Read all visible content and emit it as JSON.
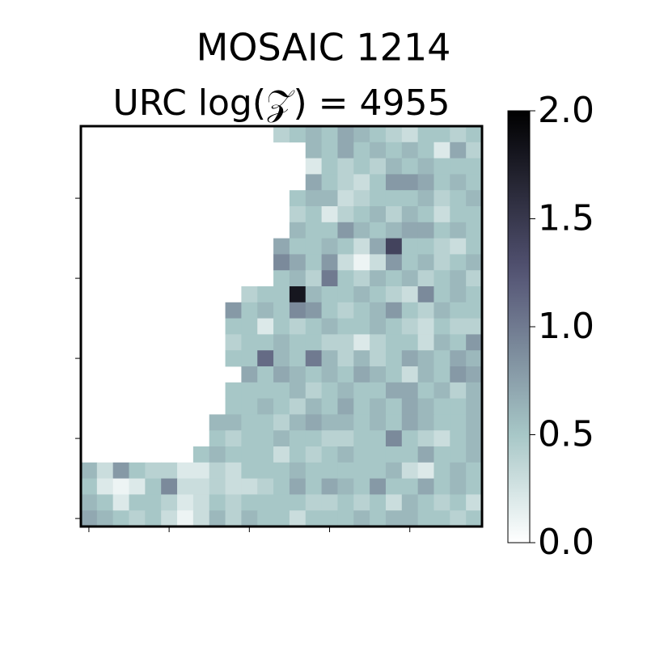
{
  "chart_data": {
    "type": "heatmap",
    "title": "MOSAIC 1214",
    "subtitle": "URC log(𝒵) = 4955",
    "colormap": "bone_r",
    "xlim": [
      -0.5,
      24.5
    ],
    "ylim": [
      24.5,
      -0.5
    ],
    "xticks": [
      0,
      5,
      10,
      15,
      20
    ],
    "yticks": [
      4,
      9,
      14,
      19,
      24
    ],
    "colorbar": {
      "lim": [
        0,
        2
      ],
      "ticks": [
        {
          "value": 0,
          "label": "0.0"
        },
        0.5,
        {
          "value": 1,
          "label": "1.0"
        },
        1.5,
        {
          "value": 2,
          "label": "2.0"
        }
      ]
    },
    "values": [
      [
        null,
        null,
        null,
        null,
        null,
        null,
        null,
        null,
        null,
        null,
        null,
        null,
        0.4,
        0.5,
        0.6,
        0.5,
        0.7,
        0.6,
        0.5,
        0.4,
        0.3,
        0.5,
        0.5,
        0.4,
        0.5
      ],
      [
        null,
        null,
        null,
        null,
        null,
        null,
        null,
        null,
        null,
        null,
        null,
        null,
        null,
        null,
        0.6,
        0.5,
        0.7,
        0.5,
        0.6,
        0.5,
        0.6,
        0.5,
        0.2,
        0.7,
        0.4
      ],
      [
        null,
        null,
        null,
        null,
        null,
        null,
        null,
        null,
        null,
        null,
        null,
        null,
        null,
        null,
        0.2,
        0.5,
        0.4,
        0.5,
        0.4,
        0.6,
        0.5,
        0.6,
        0.5,
        0.5,
        0.5
      ],
      [
        null,
        null,
        null,
        null,
        null,
        null,
        null,
        null,
        null,
        null,
        null,
        null,
        null,
        null,
        0.7,
        0.5,
        0.4,
        0.3,
        0.5,
        0.8,
        0.8,
        0.7,
        0.5,
        0.6,
        0.5
      ],
      [
        null,
        null,
        null,
        null,
        null,
        null,
        null,
        null,
        null,
        null,
        null,
        null,
        null,
        0.5,
        0.6,
        0.6,
        0.3,
        0.4,
        0.5,
        0.5,
        0.5,
        0.6,
        0.4,
        0.5,
        0.6
      ],
      [
        null,
        null,
        null,
        null,
        null,
        null,
        null,
        null,
        null,
        null,
        null,
        null,
        null,
        0.4,
        0.5,
        0.2,
        0.4,
        0.5,
        0.6,
        0.4,
        0.6,
        0.5,
        0.3,
        0.5,
        0.5
      ],
      [
        null,
        null,
        null,
        null,
        null,
        null,
        null,
        null,
        null,
        null,
        null,
        null,
        null,
        0.6,
        0.5,
        0.5,
        0.8,
        0.6,
        0.5,
        0.6,
        0.7,
        0.7,
        0.5,
        0.6,
        0.5
      ],
      [
        null,
        null,
        null,
        null,
        null,
        null,
        null,
        null,
        null,
        null,
        null,
        null,
        0.7,
        0.5,
        0.5,
        0.6,
        0.5,
        0.3,
        0.7,
        1.4,
        0.5,
        0.5,
        0.4,
        0.3,
        0.5
      ],
      [
        null,
        null,
        null,
        null,
        null,
        null,
        null,
        null,
        null,
        null,
        null,
        null,
        0.9,
        0.7,
        0.5,
        0.8,
        0.3,
        0.1,
        0.3,
        0.8,
        0.5,
        0.6,
        0.4,
        0.5,
        0.6
      ],
      [
        null,
        null,
        null,
        null,
        null,
        null,
        null,
        null,
        null,
        null,
        null,
        null,
        0.5,
        0.6,
        0.4,
        1.0,
        0.5,
        0.4,
        0.6,
        0.5,
        0.6,
        0.4,
        0.5,
        0.6,
        0.4
      ],
      [
        null,
        null,
        null,
        null,
        null,
        null,
        null,
        null,
        null,
        null,
        0.4,
        0.5,
        0.5,
        1.8,
        0.6,
        0.5,
        0.5,
        0.6,
        0.5,
        0.4,
        0.3,
        0.9,
        0.5,
        0.6,
        0.5
      ],
      [
        null,
        null,
        null,
        null,
        null,
        null,
        null,
        null,
        null,
        0.8,
        0.5,
        0.6,
        0.5,
        0.9,
        0.8,
        0.5,
        0.4,
        0.5,
        0.6,
        0.8,
        0.5,
        0.4,
        0.6,
        0.5,
        0.5
      ],
      [
        null,
        null,
        null,
        null,
        null,
        null,
        null,
        null,
        null,
        0.5,
        0.5,
        0.2,
        0.5,
        0.4,
        0.5,
        0.6,
        0.5,
        0.5,
        0.6,
        0.5,
        0.4,
        0.3,
        0.5,
        0.4,
        0.4
      ],
      [
        null,
        null,
        null,
        null,
        null,
        null,
        null,
        null,
        null,
        0.4,
        0.5,
        0.5,
        0.6,
        0.5,
        0.5,
        0.4,
        0.4,
        0.2,
        0.4,
        0.5,
        0.5,
        0.3,
        0.6,
        0.5,
        0.8
      ],
      [
        null,
        null,
        null,
        null,
        null,
        null,
        null,
        null,
        null,
        0.5,
        0.5,
        1.1,
        0.6,
        0.5,
        1.0,
        0.6,
        0.4,
        0.6,
        0.4,
        0.5,
        0.7,
        0.6,
        0.5,
        0.7,
        0.6
      ],
      [
        null,
        null,
        null,
        null,
        null,
        null,
        null,
        null,
        null,
        null,
        0.7,
        0.5,
        0.7,
        0.6,
        0.5,
        0.6,
        0.5,
        0.7,
        0.6,
        0.5,
        0.3,
        0.6,
        0.5,
        0.8,
        0.7
      ],
      [
        null,
        null,
        null,
        null,
        null,
        null,
        null,
        null,
        null,
        0.5,
        0.5,
        0.5,
        0.5,
        0.6,
        0.4,
        0.5,
        0.6,
        0.5,
        0.5,
        0.7,
        0.7,
        0.5,
        0.6,
        0.4,
        0.6
      ],
      [
        null,
        null,
        null,
        null,
        null,
        null,
        null,
        null,
        null,
        0.5,
        0.5,
        0.6,
        0.5,
        0.4,
        0.6,
        0.5,
        0.7,
        0.5,
        0.6,
        0.5,
        0.7,
        0.6,
        0.5,
        0.5,
        0.6
      ],
      [
        null,
        null,
        null,
        null,
        null,
        null,
        null,
        null,
        0.6,
        0.6,
        0.5,
        0.5,
        0.4,
        0.6,
        0.7,
        0.6,
        0.6,
        0.5,
        0.6,
        0.5,
        0.7,
        0.6,
        0.5,
        0.5,
        0.6
      ],
      [
        null,
        null,
        null,
        null,
        null,
        null,
        null,
        null,
        0.5,
        0.4,
        0.5,
        0.5,
        0.6,
        0.5,
        0.5,
        0.4,
        0.4,
        0.5,
        0.5,
        0.9,
        0.5,
        0.4,
        0.3,
        0.5,
        0.6
      ],
      [
        null,
        null,
        null,
        null,
        null,
        null,
        null,
        0.5,
        0.6,
        0.5,
        0.5,
        0.5,
        0.3,
        0.5,
        0.4,
        0.5,
        0.6,
        0.5,
        0.5,
        0.5,
        0.5,
        0.7,
        0.5,
        0.5,
        0.6
      ],
      [
        0.6,
        0.3,
        0.8,
        0.5,
        0.4,
        0.4,
        0.2,
        0.2,
        0.4,
        0.3,
        0.5,
        0.5,
        0.5,
        0.6,
        0.5,
        0.5,
        0.5,
        0.5,
        0.5,
        0.6,
        0.3,
        0.2,
        0.5,
        0.6,
        0.5
      ],
      [
        0.5,
        0.2,
        0.1,
        0.2,
        0.5,
        0.9,
        0.3,
        0.3,
        0.4,
        0.3,
        0.3,
        0.4,
        0.5,
        0.7,
        0.5,
        0.7,
        0.6,
        0.5,
        0.8,
        0.5,
        0.5,
        0.7,
        0.5,
        0.6,
        0.5
      ],
      [
        0.6,
        0.5,
        0.2,
        0.5,
        0.5,
        0.4,
        0.2,
        0.3,
        0.5,
        0.4,
        0.5,
        0.5,
        0.5,
        0.5,
        0.4,
        0.4,
        0.5,
        0.4,
        0.5,
        0.3,
        0.6,
        0.5,
        0.4,
        0.5,
        0.3
      ],
      [
        0.7,
        0.6,
        0.5,
        0.4,
        0.5,
        0.3,
        0.1,
        0.3,
        0.6,
        0.4,
        0.6,
        0.5,
        0.5,
        0.3,
        0.5,
        0.5,
        0.5,
        0.6,
        0.5,
        0.6,
        0.6,
        0.5,
        0.5,
        0.4,
        0.5
      ]
    ]
  }
}
